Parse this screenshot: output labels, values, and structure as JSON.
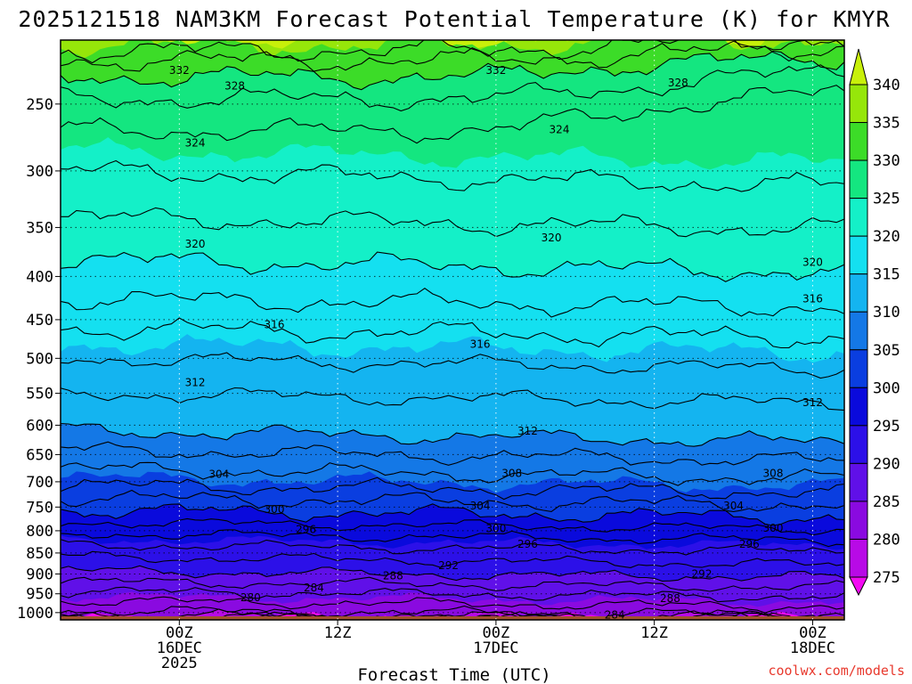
{
  "chart_data": {
    "type": "contour",
    "title": "2025121518 NAM3KM Forecast Potential Temperature (K) for KMYR",
    "xlabel": "Forecast Time (UTC)",
    "ylabel": "",
    "credit": "coolwx.com/models",
    "x_hours_range": [
      -15,
      84
    ],
    "ylim": [
      1020,
      210
    ],
    "y_ticks": [
      250,
      300,
      350,
      400,
      450,
      500,
      550,
      600,
      650,
      700,
      750,
      800,
      850,
      900,
      950,
      1000
    ],
    "x_ticks": [
      {
        "hour": 0,
        "lines": [
          "00Z",
          "16DEC",
          "2025"
        ]
      },
      {
        "hour": 20,
        "lines": [
          "12Z"
        ]
      },
      {
        "hour": 40,
        "lines": [
          "00Z",
          "17DEC"
        ]
      },
      {
        "hour": 60,
        "lines": [
          "12Z"
        ]
      },
      {
        "hour": 80,
        "lines": [
          "00Z",
          "18DEC"
        ]
      }
    ],
    "colorbar": {
      "levels": [
        275,
        280,
        285,
        290,
        295,
        300,
        305,
        310,
        315,
        320,
        325,
        330,
        335,
        340
      ],
      "colors": [
        "#f20af2",
        "#b80ae6",
        "#8a0ae0",
        "#6010e8",
        "#2c10e8",
        "#0a0adc",
        "#0a3ee0",
        "#1478e6",
        "#14b4f0",
        "#14e0f0",
        "#14f0c8",
        "#14e680",
        "#3cdc28",
        "#96e60a",
        "#c8f00a"
      ],
      "labels": [
        "275",
        "280",
        "285",
        "290",
        "295",
        "300",
        "305",
        "310",
        "315",
        "320",
        "325",
        "330",
        "335",
        "340"
      ]
    },
    "below_ground_color": "#a0522d",
    "ground_pressure": 1020,
    "theta_profile": {
      "pressure": [
        1015,
        1000,
        975,
        950,
        925,
        900,
        875,
        850,
        825,
        800,
        775,
        750,
        725,
        700,
        675,
        650,
        625,
        600,
        575,
        550,
        525,
        500,
        475,
        450,
        425,
        400,
        375,
        350,
        325,
        300,
        275,
        250,
        225,
        210
      ],
      "theta": [
        278,
        281,
        283,
        285,
        287,
        289,
        290.5,
        292,
        294,
        296,
        298,
        300,
        302,
        304,
        305.5,
        307,
        308.5,
        310,
        311,
        312,
        313,
        314,
        315.3,
        316.5,
        318,
        319.2,
        320.3,
        321.5,
        322.8,
        324,
        325.5,
        327.5,
        331,
        336
      ]
    },
    "contour_labels": [
      {
        "value": "332",
        "hour": 0,
        "pressure": 228
      },
      {
        "value": "332",
        "hour": 40,
        "pressure": 228
      },
      {
        "value": "328",
        "hour": 7,
        "pressure": 238
      },
      {
        "value": "328",
        "hour": 63,
        "pressure": 236
      },
      {
        "value": "324",
        "hour": 2,
        "pressure": 278
      },
      {
        "value": "324",
        "hour": 48,
        "pressure": 268
      },
      {
        "value": "320",
        "hour": 2,
        "pressure": 366
      },
      {
        "value": "320",
        "hour": 47,
        "pressure": 360
      },
      {
        "value": "320",
        "hour": 80,
        "pressure": 385
      },
      {
        "value": "316",
        "hour": 12,
        "pressure": 456
      },
      {
        "value": "316",
        "hour": 38,
        "pressure": 481
      },
      {
        "value": "316",
        "hour": 80,
        "pressure": 425
      },
      {
        "value": "312",
        "hour": 2,
        "pressure": 534
      },
      {
        "value": "312",
        "hour": 44,
        "pressure": 610
      },
      {
        "value": "312",
        "hour": 80,
        "pressure": 564
      },
      {
        "value": "308",
        "hour": 42,
        "pressure": 684
      },
      {
        "value": "308",
        "hour": 75,
        "pressure": 684
      },
      {
        "value": "304",
        "hour": 5,
        "pressure": 686
      },
      {
        "value": "304",
        "hour": 38,
        "pressure": 748
      },
      {
        "value": "304",
        "hour": 70,
        "pressure": 748
      },
      {
        "value": "300",
        "hour": 12,
        "pressure": 755
      },
      {
        "value": "300",
        "hour": 40,
        "pressure": 795
      },
      {
        "value": "300",
        "hour": 75,
        "pressure": 794
      },
      {
        "value": "296",
        "hour": 16,
        "pressure": 797
      },
      {
        "value": "296",
        "hour": 44,
        "pressure": 830
      },
      {
        "value": "296",
        "hour": 72,
        "pressure": 830
      },
      {
        "value": "292",
        "hour": 34,
        "pressure": 880
      },
      {
        "value": "292",
        "hour": 66,
        "pressure": 900
      },
      {
        "value": "288",
        "hour": 27,
        "pressure": 905
      },
      {
        "value": "288",
        "hour": 62,
        "pressure": 962
      },
      {
        "value": "284",
        "hour": 17,
        "pressure": 935
      },
      {
        "value": "284",
        "hour": 55,
        "pressure": 1007
      },
      {
        "value": "280",
        "hour": 9,
        "pressure": 960
      }
    ]
  }
}
